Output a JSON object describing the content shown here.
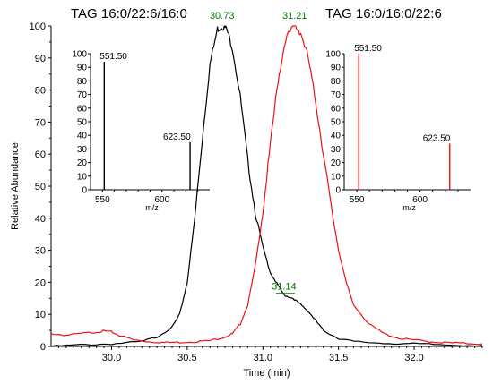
{
  "chart_data": [
    {
      "type": "line",
      "title": "",
      "xlabel": "Time (min)",
      "ylabel": "Relative Abundance",
      "xlim": [
        29.6,
        32.45
      ],
      "ylim": [
        0,
        100
      ],
      "xticks": [
        "30.0",
        "30.5",
        "31.0",
        "31.5",
        "32.0"
      ],
      "yticks": [
        "0",
        "10",
        "20",
        "30",
        "40",
        "50",
        "60",
        "70",
        "80",
        "90",
        "100"
      ],
      "grid": false,
      "series": [
        {
          "color": "#000000",
          "x": [
            29.6,
            29.8,
            30.0,
            30.2,
            30.3,
            30.4,
            30.45,
            30.5,
            30.55,
            30.6,
            30.65,
            30.7,
            30.73,
            30.76,
            30.8,
            30.85,
            30.9,
            30.95,
            31.0,
            31.05,
            31.1,
            31.14,
            31.2,
            31.25,
            31.3,
            31.35,
            31.4,
            31.5,
            31.6,
            31.8,
            32.0,
            32.2,
            32.45
          ],
          "y": [
            0,
            0.5,
            0.8,
            1.5,
            3,
            6,
            10,
            20,
            40,
            65,
            88,
            99,
            100,
            99,
            93,
            78,
            58,
            42,
            31,
            23,
            19,
            16,
            15,
            13,
            11,
            8,
            5,
            2.5,
            1.5,
            1,
            0.8,
            0.5,
            0.3
          ]
        },
        {
          "color": "#ee1111",
          "x": [
            29.6,
            29.7,
            29.8,
            29.9,
            29.95,
            30.0,
            30.05,
            30.15,
            30.25,
            30.35,
            30.45,
            30.55,
            30.65,
            30.75,
            30.8,
            30.85,
            30.9,
            30.95,
            31.0,
            31.05,
            31.1,
            31.15,
            31.21,
            31.25,
            31.3,
            31.35,
            31.4,
            31.45,
            31.5,
            31.55,
            31.6,
            31.7,
            31.8,
            31.9,
            32.0,
            32.1,
            32.2,
            32.3,
            32.45
          ],
          "y": [
            4,
            3.5,
            4,
            4.5,
            4.8,
            4.5,
            3.5,
            2,
            1.5,
            1.2,
            1.3,
            1.5,
            1.8,
            3,
            4,
            7,
            13,
            25,
            42,
            63,
            83,
            96,
            100,
            98,
            90,
            76,
            60,
            44,
            30,
            20,
            13,
            7,
            4,
            2.5,
            2,
            1.5,
            1.2,
            1,
            0.8
          ]
        }
      ],
      "peak_labels": [
        {
          "text": "30.73",
          "x": 30.73,
          "y": 100,
          "color": "#007a00"
        },
        {
          "text": "31.21",
          "x": 31.21,
          "y": 100,
          "color": "#007a00"
        },
        {
          "text": "31.14",
          "x": 31.14,
          "y": 16,
          "color": "#007a00"
        }
      ]
    },
    {
      "type": "bar",
      "title": "TAG 16:0/22:6/16:0",
      "xlabel": "m/z",
      "ylabel": "",
      "xlim": [
        540,
        640
      ],
      "ylim": [
        0,
        100
      ],
      "xticks": [
        "550",
        "600"
      ],
      "yticks": [
        "0",
        "10",
        "20",
        "30",
        "40",
        "50",
        "60",
        "70",
        "80",
        "90",
        "100"
      ],
      "color": "#000000",
      "peaks": [
        {
          "x": 551.5,
          "y": 94,
          "label": "551.50"
        },
        {
          "x": 623.5,
          "y": 35,
          "label": "623.50"
        }
      ]
    },
    {
      "type": "bar",
      "title": "TAG 16:0/16:0/22:6",
      "xlabel": "m/z",
      "ylabel": "",
      "xlim": [
        540,
        640
      ],
      "ylim": [
        0,
        100
      ],
      "xticks": [
        "550",
        "600"
      ],
      "yticks": [
        "0",
        "10",
        "20",
        "30",
        "40",
        "50",
        "60",
        "70",
        "80",
        "90",
        "100"
      ],
      "color": "#ee1111",
      "peaks": [
        {
          "x": 551.5,
          "y": 100,
          "label": "551.50"
        },
        {
          "x": 623.5,
          "y": 34,
          "label": "623.50"
        }
      ]
    }
  ]
}
